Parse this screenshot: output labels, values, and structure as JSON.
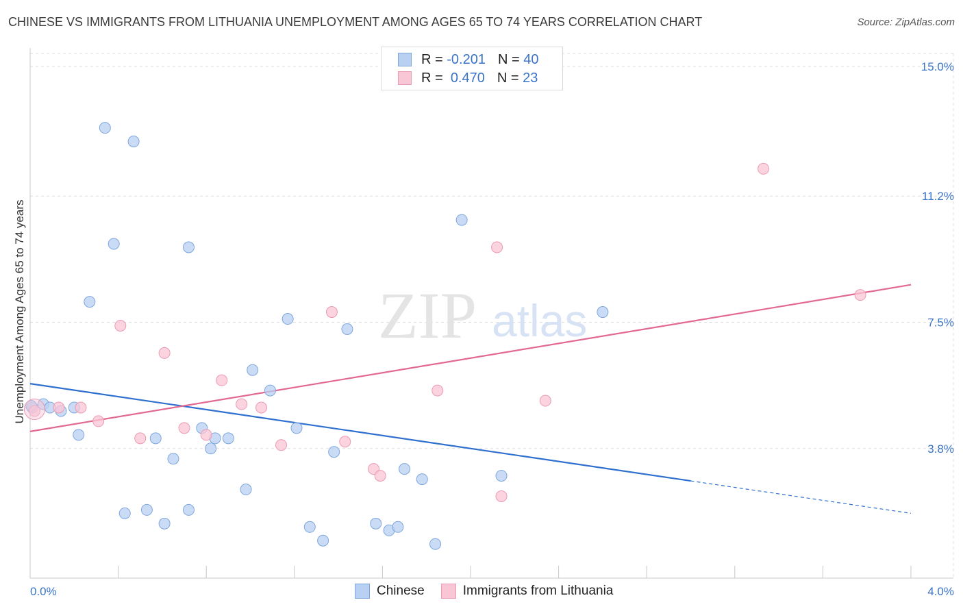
{
  "title": "CHINESE VS IMMIGRANTS FROM LITHUANIA UNEMPLOYMENT AMONG AGES 65 TO 74 YEARS CORRELATION CHART",
  "source": "Source: ZipAtlas.com",
  "watermark": {
    "zip": "ZIP",
    "atlas": "atlas"
  },
  "legend_top": {
    "rows": [
      {
        "r_label": "R =",
        "r_value": "-0.201",
        "n_label": "N =",
        "n_value": "40"
      },
      {
        "r_label": "R =",
        "r_value": "0.470",
        "n_label": "N =",
        "n_value": "23"
      }
    ]
  },
  "legend_bottom": {
    "series1": "Chinese",
    "series2": "Immigrants from Lithuania"
  },
  "colors": {
    "chinese_fill": "#b8d0f2",
    "chinese_stroke": "#7ea6dd",
    "chinese_line": "#2e6fcf",
    "lithuania_fill": "#f9c6d6",
    "lithuania_stroke": "#eb9ab3",
    "lithuania_line": "#e36891",
    "tick_text": "#3a74c8",
    "grid": "#dddddd"
  },
  "chart_data": {
    "type": "scatter",
    "title": "CHINESE VS IMMIGRANTS FROM LITHUANIA UNEMPLOYMENT AMONG AGES 65 TO 74 YEARS CORRELATION CHART",
    "xlabel": "",
    "ylabel": "Unemployment Among Ages 65 to 74 years",
    "xlim": [
      0,
      4.0
    ],
    "ylim": [
      0,
      15.0
    ],
    "x_tick_labels": [
      "0.0%",
      "4.0%"
    ],
    "y_ticks": [
      3.8,
      7.5,
      11.2,
      15.0
    ],
    "y_tick_labels": [
      "3.8%",
      "7.5%",
      "11.2%",
      "15.0%"
    ],
    "grid": true,
    "legend": "top-center",
    "series": [
      {
        "name": "Chinese",
        "r": -0.201,
        "n": 40,
        "trend": {
          "x0": 0.0,
          "y0": 5.7,
          "x1": 3.0,
          "y1": 2.85,
          "dash_to_x": 4.0,
          "dash_to_y": 1.9
        },
        "points": [
          [
            0.01,
            5.0
          ],
          [
            0.06,
            5.1
          ],
          [
            0.09,
            5.0
          ],
          [
            0.14,
            4.9
          ],
          [
            0.2,
            5.0
          ],
          [
            0.22,
            4.2
          ],
          [
            0.27,
            8.1
          ],
          [
            0.34,
            13.2
          ],
          [
            0.38,
            9.8
          ],
          [
            0.43,
            1.9
          ],
          [
            0.47,
            12.8
          ],
          [
            0.53,
            2.0
          ],
          [
            0.57,
            4.1
          ],
          [
            0.61,
            1.6
          ],
          [
            0.65,
            3.5
          ],
          [
            0.72,
            9.7
          ],
          [
            0.72,
            2.0
          ],
          [
            0.78,
            4.4
          ],
          [
            0.82,
            3.8
          ],
          [
            0.84,
            4.1
          ],
          [
            0.9,
            4.1
          ],
          [
            0.98,
            2.6
          ],
          [
            1.01,
            6.1
          ],
          [
            1.09,
            5.5
          ],
          [
            1.17,
            7.6
          ],
          [
            1.21,
            4.4
          ],
          [
            1.27,
            1.5
          ],
          [
            1.33,
            1.1
          ],
          [
            1.38,
            3.7
          ],
          [
            1.44,
            7.3
          ],
          [
            1.57,
            1.6
          ],
          [
            1.63,
            1.4
          ],
          [
            1.67,
            1.5
          ],
          [
            1.7,
            3.2
          ],
          [
            1.78,
            2.9
          ],
          [
            1.84,
            1.0
          ],
          [
            1.96,
            10.5
          ],
          [
            2.14,
            3.0
          ],
          [
            2.6,
            7.8
          ],
          [
            0.005,
            5.05
          ]
        ]
      },
      {
        "name": "Immigrants from Lithuania",
        "r": 0.47,
        "n": 23,
        "trend": {
          "x0": 0.0,
          "y0": 4.3,
          "x1": 4.0,
          "y1": 8.6
        },
        "points": [
          [
            0.02,
            4.9
          ],
          [
            0.13,
            5.0
          ],
          [
            0.23,
            5.0
          ],
          [
            0.31,
            4.6
          ],
          [
            0.41,
            7.4
          ],
          [
            0.5,
            4.1
          ],
          [
            0.61,
            6.6
          ],
          [
            0.7,
            4.4
          ],
          [
            0.8,
            4.2
          ],
          [
            0.87,
            5.8
          ],
          [
            0.96,
            5.1
          ],
          [
            1.05,
            5.0
          ],
          [
            1.14,
            3.9
          ],
          [
            1.37,
            7.8
          ],
          [
            1.43,
            4.0
          ],
          [
            1.56,
            3.2
          ],
          [
            1.59,
            3.0
          ],
          [
            1.85,
            5.5
          ],
          [
            2.12,
            9.7
          ],
          [
            2.14,
            2.4
          ],
          [
            2.34,
            5.2
          ],
          [
            3.33,
            12.0
          ],
          [
            3.77,
            8.3
          ]
        ]
      }
    ]
  }
}
